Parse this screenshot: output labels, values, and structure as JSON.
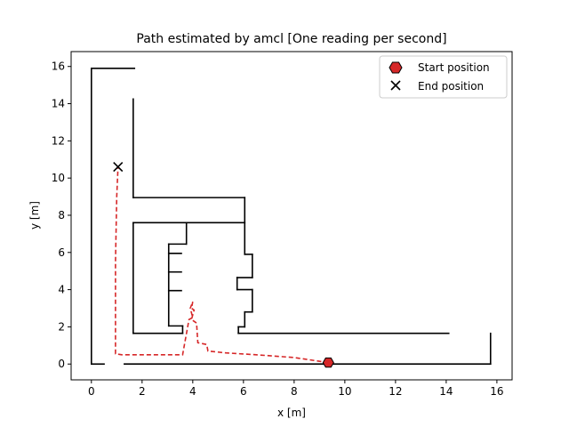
{
  "chart_data": {
    "type": "line",
    "title": "Path estimated by amcl [One reading per second]",
    "xlabel": "x [m]",
    "ylabel": "y [m]",
    "xlim": [
      -0.8,
      16.6
    ],
    "ylim": [
      -0.85,
      16.8
    ],
    "xticks": [
      0,
      2,
      4,
      6,
      8,
      10,
      12,
      14,
      16
    ],
    "yticks": [
      0,
      2,
      4,
      6,
      8,
      10,
      12,
      14,
      16
    ],
    "grid": false,
    "legend": {
      "placement": "top-right",
      "entries": [
        {
          "label": "Start position",
          "marker": "hexagon",
          "color": "#d62728"
        },
        {
          "label": "End position",
          "marker": "x",
          "color": "#000000"
        }
      ]
    },
    "walls": {
      "color": "#000000",
      "segments": [
        [
          [
            0,
            15.9
          ],
          [
            1.7,
            15.9
          ]
        ],
        [
          [
            0,
            15.9
          ],
          [
            0,
            0
          ]
        ],
        [
          [
            0,
            0
          ],
          [
            0.5,
            0
          ]
        ],
        [
          [
            1.3,
            0
          ],
          [
            15.75,
            0
          ]
        ],
        [
          [
            15.75,
            0
          ],
          [
            15.75,
            1.65
          ]
        ],
        [
          [
            1.65,
            14.25
          ],
          [
            1.65,
            8.95
          ]
        ],
        [
          [
            1.65,
            8.95
          ],
          [
            6.05,
            8.95
          ]
        ],
        [
          [
            6.05,
            8.95
          ],
          [
            6.05,
            7.6
          ]
        ],
        [
          [
            1.65,
            7.6
          ],
          [
            6.05,
            7.6
          ]
        ],
        [
          [
            1.65,
            7.6
          ],
          [
            1.65,
            1.65
          ]
        ],
        [
          [
            1.65,
            1.65
          ],
          [
            3.6,
            1.65
          ]
        ],
        [
          [
            3.6,
            1.65
          ],
          [
            3.6,
            2.05
          ]
        ],
        [
          [
            3.6,
            2.05
          ],
          [
            3.05,
            2.05
          ]
        ],
        [
          [
            3.05,
            2.05
          ],
          [
            3.05,
            6.45
          ]
        ],
        [
          [
            3.05,
            6.45
          ],
          [
            3.75,
            6.45
          ]
        ],
        [
          [
            3.75,
            6.45
          ],
          [
            3.75,
            7.6
          ]
        ],
        [
          [
            3.05,
            5.95
          ],
          [
            3.55,
            5.95
          ]
        ],
        [
          [
            3.05,
            4.95
          ],
          [
            3.55,
            4.95
          ]
        ],
        [
          [
            3.05,
            3.95
          ],
          [
            3.55,
            3.95
          ]
        ],
        [
          [
            6.05,
            7.6
          ],
          [
            6.05,
            5.9
          ]
        ],
        [
          [
            6.05,
            5.9
          ],
          [
            6.35,
            5.9
          ]
        ],
        [
          [
            6.35,
            5.9
          ],
          [
            6.35,
            4.65
          ]
        ],
        [
          [
            6.35,
            4.65
          ],
          [
            5.75,
            4.65
          ]
        ],
        [
          [
            5.75,
            4.65
          ],
          [
            5.75,
            4.0
          ]
        ],
        [
          [
            5.75,
            4.0
          ],
          [
            6.35,
            4.0
          ]
        ],
        [
          [
            6.35,
            4.0
          ],
          [
            6.35,
            2.8
          ]
        ],
        [
          [
            6.35,
            2.8
          ],
          [
            6.05,
            2.8
          ]
        ],
        [
          [
            6.05,
            2.8
          ],
          [
            6.05,
            2.0
          ]
        ],
        [
          [
            6.05,
            2.0
          ],
          [
            5.8,
            2.0
          ]
        ],
        [
          [
            5.8,
            2.0
          ],
          [
            5.8,
            1.65
          ]
        ],
        [
          [
            5.8,
            1.65
          ],
          [
            14.1,
            1.65
          ]
        ]
      ]
    },
    "path": {
      "color": "#d62728",
      "style": "dashed",
      "points": [
        [
          9.35,
          0.08
        ],
        [
          8.0,
          0.35
        ],
        [
          6.5,
          0.5
        ],
        [
          5.3,
          0.6
        ],
        [
          4.6,
          0.7
        ],
        [
          4.55,
          1.05
        ],
        [
          4.2,
          1.15
        ],
        [
          4.15,
          2.2
        ],
        [
          3.95,
          2.4
        ],
        [
          4.05,
          2.9
        ],
        [
          3.95,
          3.0
        ],
        [
          4.0,
          3.35
        ],
        [
          3.9,
          3.0
        ],
        [
          4.0,
          2.5
        ],
        [
          3.85,
          2.4
        ],
        [
          3.6,
          0.5
        ],
        [
          2.5,
          0.5
        ],
        [
          1.2,
          0.5
        ],
        [
          0.95,
          0.55
        ],
        [
          0.95,
          1.5
        ],
        [
          0.95,
          5.5
        ],
        [
          1.0,
          9.0
        ],
        [
          1.05,
          10.55
        ]
      ]
    },
    "start_position": [
      9.35,
      0.08
    ],
    "end_position": [
      1.05,
      10.6
    ]
  }
}
